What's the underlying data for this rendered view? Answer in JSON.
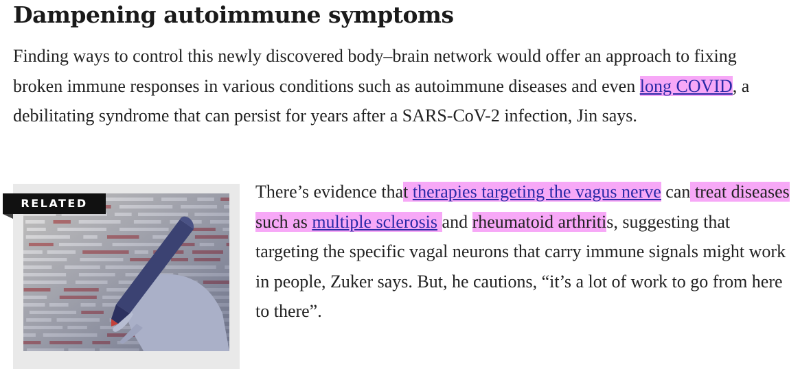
{
  "article": {
    "heading": "Dampening autoimmune symptoms",
    "para1": {
      "t1": "Finding ways to control this newly discovered body–brain network would offer an approach to fixing broken immune responses in various conditions such as autoimmune diseases and even ",
      "link_long_covid": "long COVID",
      "t2": ", a debilitating syndrome that can persist for years after a SARS-CoV-2 infection, Jin says."
    },
    "para2": {
      "t1": "There’s evidence tha",
      "h1": "t ",
      "link_vagus": "therapies targeting the vagus nerve",
      "t2": " can",
      "h2": " treat diseases such as ",
      "link_ms": "multiple sclerosis",
      "h3": " ",
      "t3": "and ",
      "h4": "rheumatoid arthriti",
      "t4": "s, suggesting that targeting the specific vagal neurons that carry immune signals might work in people, Zuker says. But, he cautions, “it’s a lot of work to go from here to there”."
    }
  },
  "related": {
    "tag": "RELATED",
    "image_icon": "hand-holding-marker-illustration"
  },
  "colors": {
    "highlight": "#f7a8f7",
    "link": "#2929a6",
    "text": "#222222",
    "related_bg": "#e9e9e9",
    "tag_bg": "#111111"
  }
}
